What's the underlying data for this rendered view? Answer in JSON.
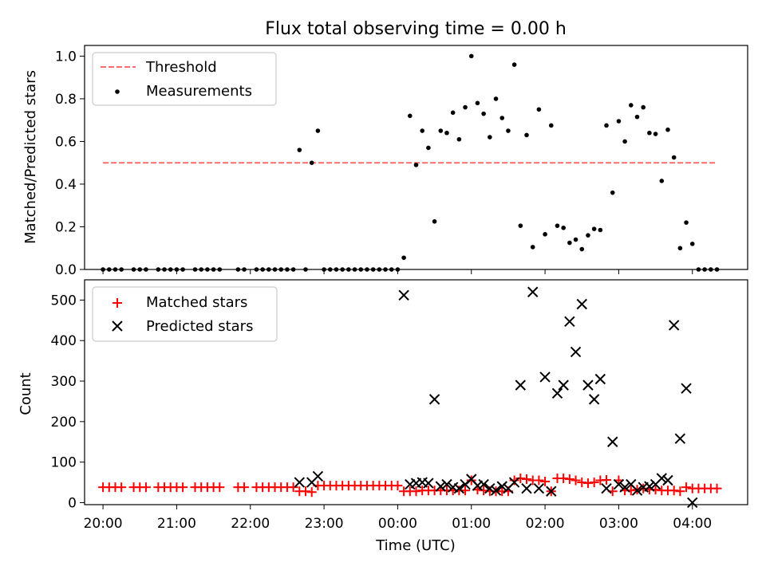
{
  "title": "Flux total observing time = 0.00 h",
  "colors": {
    "threshold": "#ff6b6b",
    "measurement": "#000000",
    "matched": "#ff0000",
    "predicted": "#000000"
  },
  "chart_data": [
    {
      "type": "scatter",
      "panel": "top",
      "ylabel": "Matched/Predicted stars",
      "xlabel": "",
      "xlim": [
        "19:45",
        "04:45"
      ],
      "ylim": [
        0,
        1.05
      ],
      "yticks": [
        "0.0",
        "0.2",
        "0.4",
        "0.6",
        "0.8",
        "1.0"
      ],
      "legend": {
        "position": "top-left",
        "entries": [
          "Threshold",
          "Measurements"
        ]
      },
      "series": [
        {
          "name": "Threshold",
          "kind": "dashed-line",
          "x": [
            "20:00",
            "04:20"
          ],
          "y": [
            0.5,
            0.5
          ]
        },
        {
          "name": "Measurements",
          "kind": "points",
          "x": [
            "20:00",
            "20:05",
            "20:10",
            "20:15",
            "20:25",
            "20:30",
            "20:35",
            "20:45",
            "20:50",
            "20:55",
            "21:00",
            "21:05",
            "21:15",
            "21:20",
            "21:25",
            "21:30",
            "21:35",
            "21:50",
            "21:55",
            "22:05",
            "22:10",
            "22:15",
            "22:20",
            "22:25",
            "22:30",
            "22:35",
            "22:45",
            "22:40",
            "22:50",
            "22:55",
            "23:00",
            "23:05",
            "23:10",
            "23:15",
            "23:20",
            "23:25",
            "23:30",
            "23:35",
            "23:40",
            "23:45",
            "23:50",
            "23:55",
            "00:00",
            "00:05",
            "00:10",
            "00:15",
            "00:20",
            "00:25",
            "00:30",
            "00:35",
            "00:40",
            "00:45",
            "00:50",
            "00:55",
            "01:00",
            "01:05",
            "01:10",
            "01:15",
            "01:20",
            "01:25",
            "01:30",
            "01:35",
            "01:40",
            "01:45",
            "01:50",
            "01:55",
            "02:00",
            "02:05",
            "02:10",
            "02:15",
            "02:20",
            "02:25",
            "02:30",
            "02:35",
            "02:40",
            "02:45",
            "02:50",
            "02:55",
            "03:00",
            "03:05",
            "03:10",
            "03:15",
            "03:20",
            "03:25",
            "03:30",
            "03:35",
            "03:40",
            "03:45",
            "03:50",
            "03:55",
            "04:00",
            "04:05",
            "04:10",
            "04:15",
            "04:20"
          ],
          "y": [
            0,
            0,
            0,
            0,
            0,
            0,
            0,
            0,
            0,
            0,
            0,
            0,
            0,
            0,
            0,
            0,
            0,
            0,
            0,
            0,
            0,
            0,
            0,
            0,
            0,
            0,
            0,
            0.56,
            0.5,
            0.65,
            0,
            0,
            0,
            0,
            0,
            0,
            0,
            0,
            0,
            0,
            0,
            0,
            0,
            0.055,
            0.72,
            0.49,
            0.65,
            0.57,
            0.225,
            0.65,
            0.64,
            0.735,
            0.61,
            0.76,
            1.0,
            0.78,
            0.73,
            0.62,
            0.8,
            0.71,
            0.65,
            0.96,
            0.205,
            0.63,
            0.105,
            0.75,
            0.165,
            0.675,
            0.205,
            0.195,
            0.125,
            0.14,
            0.095,
            0.16,
            0.19,
            0.185,
            0.675,
            0.36,
            0.695,
            0.6,
            0.77,
            0.715,
            0.76,
            0.64,
            0.635,
            0.415,
            0.655,
            0.525,
            0.1,
            0.22,
            0.12,
            0,
            0,
            0,
            0
          ]
        }
      ]
    },
    {
      "type": "scatter",
      "panel": "bottom",
      "ylabel": "Count",
      "xlabel": "Time (UTC)",
      "xlim": [
        "19:45",
        "04:45"
      ],
      "ylim": [
        -5,
        550
      ],
      "yticks": [
        "0",
        "100",
        "200",
        "300",
        "400",
        "500"
      ],
      "xticks": [
        "20:00",
        "21:00",
        "22:00",
        "23:00",
        "00:00",
        "01:00",
        "02:00",
        "03:00",
        "04:00"
      ],
      "legend": {
        "position": "top-left",
        "entries": [
          "Matched stars",
          "Predicted stars"
        ]
      },
      "series": [
        {
          "name": "Matched stars",
          "marker": "+",
          "x": [
            "20:00",
            "20:05",
            "20:10",
            "20:15",
            "20:25",
            "20:30",
            "20:35",
            "20:45",
            "20:50",
            "20:55",
            "21:00",
            "21:05",
            "21:15",
            "21:20",
            "21:25",
            "21:30",
            "21:35",
            "21:50",
            "21:55",
            "22:05",
            "22:10",
            "22:15",
            "22:20",
            "22:25",
            "22:30",
            "22:35",
            "22:40",
            "22:45",
            "22:50",
            "22:55",
            "23:00",
            "23:05",
            "23:10",
            "23:15",
            "23:20",
            "23:25",
            "23:30",
            "23:35",
            "23:40",
            "23:45",
            "23:50",
            "23:55",
            "00:00",
            "00:05",
            "00:10",
            "00:15",
            "00:20",
            "00:25",
            "00:30",
            "00:35",
            "00:40",
            "00:45",
            "00:50",
            "00:55",
            "01:00",
            "01:05",
            "01:10",
            "01:15",
            "01:20",
            "01:25",
            "01:30",
            "01:35",
            "01:40",
            "01:45",
            "01:50",
            "01:55",
            "02:00",
            "02:05",
            "02:10",
            "02:15",
            "02:20",
            "02:25",
            "02:30",
            "02:35",
            "02:40",
            "02:45",
            "02:50",
            "02:55",
            "03:00",
            "03:05",
            "03:10",
            "03:15",
            "03:20",
            "03:25",
            "03:30",
            "03:35",
            "03:40",
            "03:45",
            "03:50",
            "03:55",
            "04:00",
            "04:05",
            "04:10",
            "04:15",
            "04:20"
          ],
          "y": [
            38,
            38,
            38,
            38,
            38,
            38,
            38,
            38,
            38,
            38,
            38,
            38,
            38,
            38,
            38,
            38,
            38,
            38,
            38,
            38,
            38,
            38,
            38,
            38,
            38,
            38,
            28,
            28,
            26,
            42,
            42,
            42,
            42,
            42,
            42,
            42,
            42,
            42,
            42,
            42,
            42,
            42,
            42,
            28,
            28,
            28,
            30,
            30,
            30,
            30,
            30,
            30,
            30,
            30,
            55,
            32,
            30,
            28,
            28,
            28,
            28,
            55,
            60,
            58,
            55,
            55,
            52,
            28,
            60,
            60,
            58,
            55,
            50,
            48,
            50,
            55,
            56,
            28,
            55,
            30,
            30,
            32,
            35,
            32,
            32,
            30,
            30,
            30,
            28,
            38,
            35,
            35,
            35,
            35,
            35
          ]
        },
        {
          "name": "Predicted stars",
          "marker": "x",
          "x": [
            "22:40",
            "22:50",
            "22:55",
            "00:05",
            "00:10",
            "00:15",
            "00:20",
            "00:25",
            "00:30",
            "00:35",
            "00:40",
            "00:45",
            "00:50",
            "00:55",
            "01:00",
            "01:05",
            "01:10",
            "01:15",
            "01:20",
            "01:25",
            "01:30",
            "01:35",
            "01:40",
            "01:45",
            "01:50",
            "01:55",
            "02:00",
            "02:05",
            "02:10",
            "02:15",
            "02:20",
            "02:25",
            "02:30",
            "02:35",
            "02:40",
            "02:45",
            "02:50",
            "02:55",
            "03:00",
            "03:05",
            "03:10",
            "03:15",
            "03:20",
            "03:25",
            "03:30",
            "03:35",
            "03:40",
            "03:45",
            "03:50",
            "03:55",
            "04:00"
          ],
          "y": [
            50,
            50,
            65,
            512,
            45,
            48,
            50,
            48,
            255,
            40,
            45,
            38,
            35,
            45,
            58,
            42,
            45,
            35,
            30,
            40,
            35,
            50,
            290,
            35,
            520,
            35,
            310,
            28,
            270,
            290,
            447,
            372,
            490,
            290,
            255,
            305,
            35,
            150,
            45,
            38,
            45,
            30,
            38,
            40,
            45,
            60,
            55,
            438,
            158,
            282,
            0
          ]
        }
      ]
    }
  ]
}
